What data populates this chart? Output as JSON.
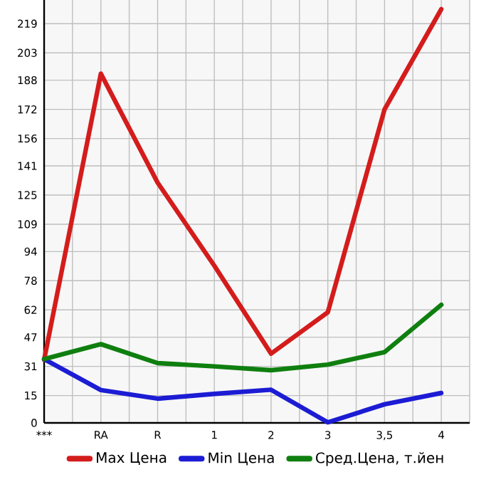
{
  "chart_data": {
    "type": "line",
    "categories": [
      "***",
      "RA",
      "R",
      "1",
      "2",
      "3",
      "3,5",
      "4"
    ],
    "series": [
      {
        "name": "Max Цена",
        "color": "#d41c1c",
        "values": [
          34.6,
          191.6,
          131.8,
          86.2,
          38,
          60.7,
          172,
          227
        ]
      },
      {
        "name": "Min Цена",
        "color": "#1c1cd4",
        "values": [
          35,
          18,
          13.3,
          15.9,
          18.2,
          0.3,
          10.2,
          16.4
        ]
      },
      {
        "name": "Сред.Цена, т.йен",
        "color": "#0f7f0f",
        "values": [
          35,
          43.2,
          32.8,
          31,
          28.9,
          32,
          38.8,
          64.8
        ]
      }
    ],
    "ylim": [
      0,
      232
    ],
    "yticks": [
      0,
      15,
      31,
      47,
      62,
      78,
      94,
      109,
      125,
      141,
      156,
      172,
      188,
      203,
      219
    ],
    "grid": true,
    "legend": "bottom",
    "marker": "none",
    "line_style": "solid"
  }
}
